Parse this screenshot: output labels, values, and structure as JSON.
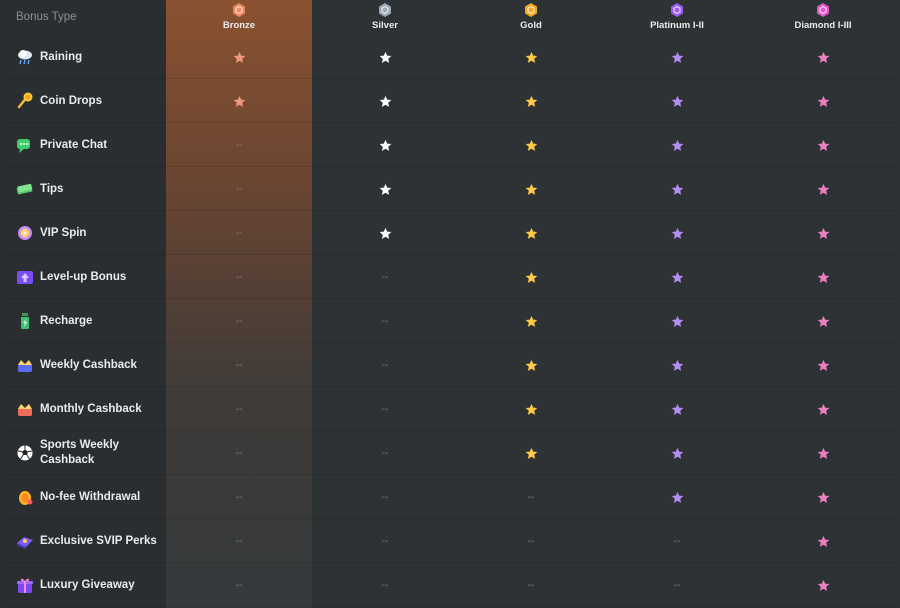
{
  "header": {
    "bonus_type_label": "Bonus Type",
    "tiers": [
      {
        "name": "Bronze",
        "color": "#f0875a",
        "icon": "bronze-badge-icon"
      },
      {
        "name": "Silver",
        "color": "#9aa7b4",
        "icon": "silver-badge-icon"
      },
      {
        "name": "Gold",
        "color": "#f5a623",
        "icon": "gold-badge-icon"
      },
      {
        "name": "Platinum I-II",
        "color": "#9b5cf0",
        "icon": "platinum-badge-icon"
      },
      {
        "name": "Diamond I-III",
        "color": "#e056c8",
        "icon": "diamond-badge-icon"
      }
    ]
  },
  "star_colors": [
    "#ee9a7c",
    "#ffffff",
    "#ffc94a",
    "#b48cf2",
    "#ee7ec0"
  ],
  "dash_text": "--",
  "rows": [
    {
      "label": "Raining",
      "icon": "rain-cloud-icon",
      "availability": [
        true,
        true,
        true,
        true,
        true
      ]
    },
    {
      "label": "Coin Drops",
      "icon": "coin-drop-icon",
      "availability": [
        true,
        true,
        true,
        true,
        true
      ]
    },
    {
      "label": "Private Chat",
      "icon": "chat-bubble-icon",
      "availability": [
        false,
        true,
        true,
        true,
        true
      ]
    },
    {
      "label": "Tips",
      "icon": "cash-tips-icon",
      "availability": [
        false,
        true,
        true,
        true,
        true
      ]
    },
    {
      "label": "VIP Spin",
      "icon": "spin-wheel-icon",
      "availability": [
        false,
        true,
        true,
        true,
        true
      ]
    },
    {
      "label": "Level-up Bonus",
      "icon": "level-up-icon",
      "availability": [
        false,
        false,
        true,
        true,
        true
      ]
    },
    {
      "label": "Recharge",
      "icon": "recharge-bottle-icon",
      "availability": [
        false,
        false,
        true,
        true,
        true
      ]
    },
    {
      "label": "Weekly Cashback",
      "icon": "weekly-calendar-icon",
      "availability": [
        false,
        false,
        true,
        true,
        true
      ]
    },
    {
      "label": "Monthly Cashback",
      "icon": "monthly-calendar-icon",
      "availability": [
        false,
        false,
        true,
        true,
        true
      ]
    },
    {
      "label": "Sports Weekly Cashback",
      "icon": "soccer-ball-icon",
      "availability": [
        false,
        false,
        true,
        true,
        true
      ]
    },
    {
      "label": "No-fee Withdrawal",
      "icon": "withdrawal-coin-icon",
      "availability": [
        false,
        false,
        false,
        true,
        true
      ]
    },
    {
      "label": "Exclusive SVIP Perks",
      "icon": "svip-perks-icon",
      "availability": [
        false,
        false,
        false,
        false,
        true
      ]
    },
    {
      "label": "Luxury Giveaway",
      "icon": "gift-box-icon",
      "availability": [
        false,
        false,
        false,
        false,
        true
      ]
    }
  ]
}
